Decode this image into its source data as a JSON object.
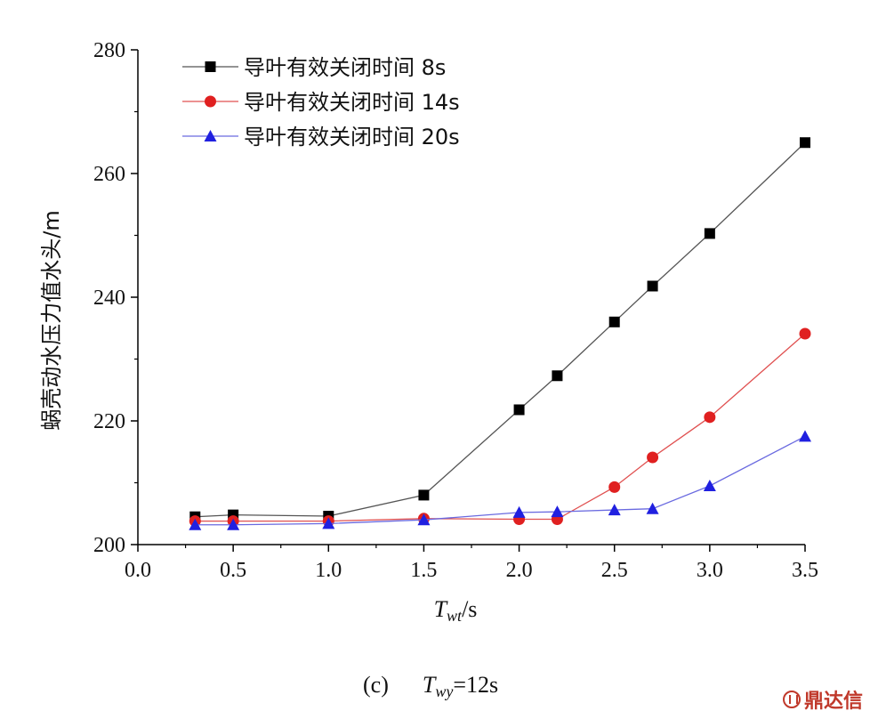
{
  "chart_data": {
    "type": "line",
    "xlabel_main": "T",
    "xlabel_sub": "wt",
    "xlabel_unit": "/s",
    "ylabel": "蜗壳动水压力值水头/m",
    "xlim": [
      0.0,
      3.5
    ],
    "ylim": [
      200,
      280
    ],
    "xticks": [
      "0.0",
      "0.5",
      "1.0",
      "1.5",
      "2.0",
      "2.5",
      "3.0",
      "3.5"
    ],
    "yticks": [
      "200",
      "220",
      "240",
      "260",
      "280"
    ],
    "legend_position": "top-left",
    "grid": false,
    "caption": {
      "prefix": "(c)",
      "var": "T",
      "sub": "wy",
      "value": "=12s"
    },
    "series": [
      {
        "name": "导叶有效关闭时间 8s",
        "color": "#000000",
        "line_color": "#555555",
        "marker": "square",
        "x": [
          0.3,
          0.5,
          1.0,
          1.5,
          2.0,
          2.2,
          2.5,
          2.7,
          3.0,
          3.5
        ],
        "y": [
          204.5,
          204.8,
          204.6,
          208.0,
          221.8,
          227.3,
          236.0,
          241.8,
          250.3,
          265.0
        ]
      },
      {
        "name": "导叶有效关闭时间 14s",
        "color": "#e02020",
        "line_color": "#e05050",
        "marker": "circle",
        "x": [
          0.3,
          0.5,
          1.0,
          1.5,
          2.0,
          2.2,
          2.5,
          2.7,
          3.0,
          3.5
        ],
        "y": [
          203.8,
          203.8,
          203.8,
          204.2,
          204.1,
          204.1,
          209.3,
          214.1,
          220.6,
          234.1
        ]
      },
      {
        "name": "导叶有效关闭时间 20s",
        "color": "#2020e0",
        "line_color": "#6a6ae0",
        "marker": "triangle",
        "x": [
          0.3,
          0.5,
          1.0,
          1.5,
          2.0,
          2.2,
          2.5,
          2.7,
          3.0,
          3.5
        ],
        "y": [
          203.2,
          203.2,
          203.4,
          204.0,
          205.2,
          205.3,
          205.6,
          205.8,
          209.5,
          217.5
        ]
      }
    ]
  },
  "watermark": {
    "text": "鼎达信",
    "icon": "brand-logo-icon",
    "color": "#c0392b"
  }
}
